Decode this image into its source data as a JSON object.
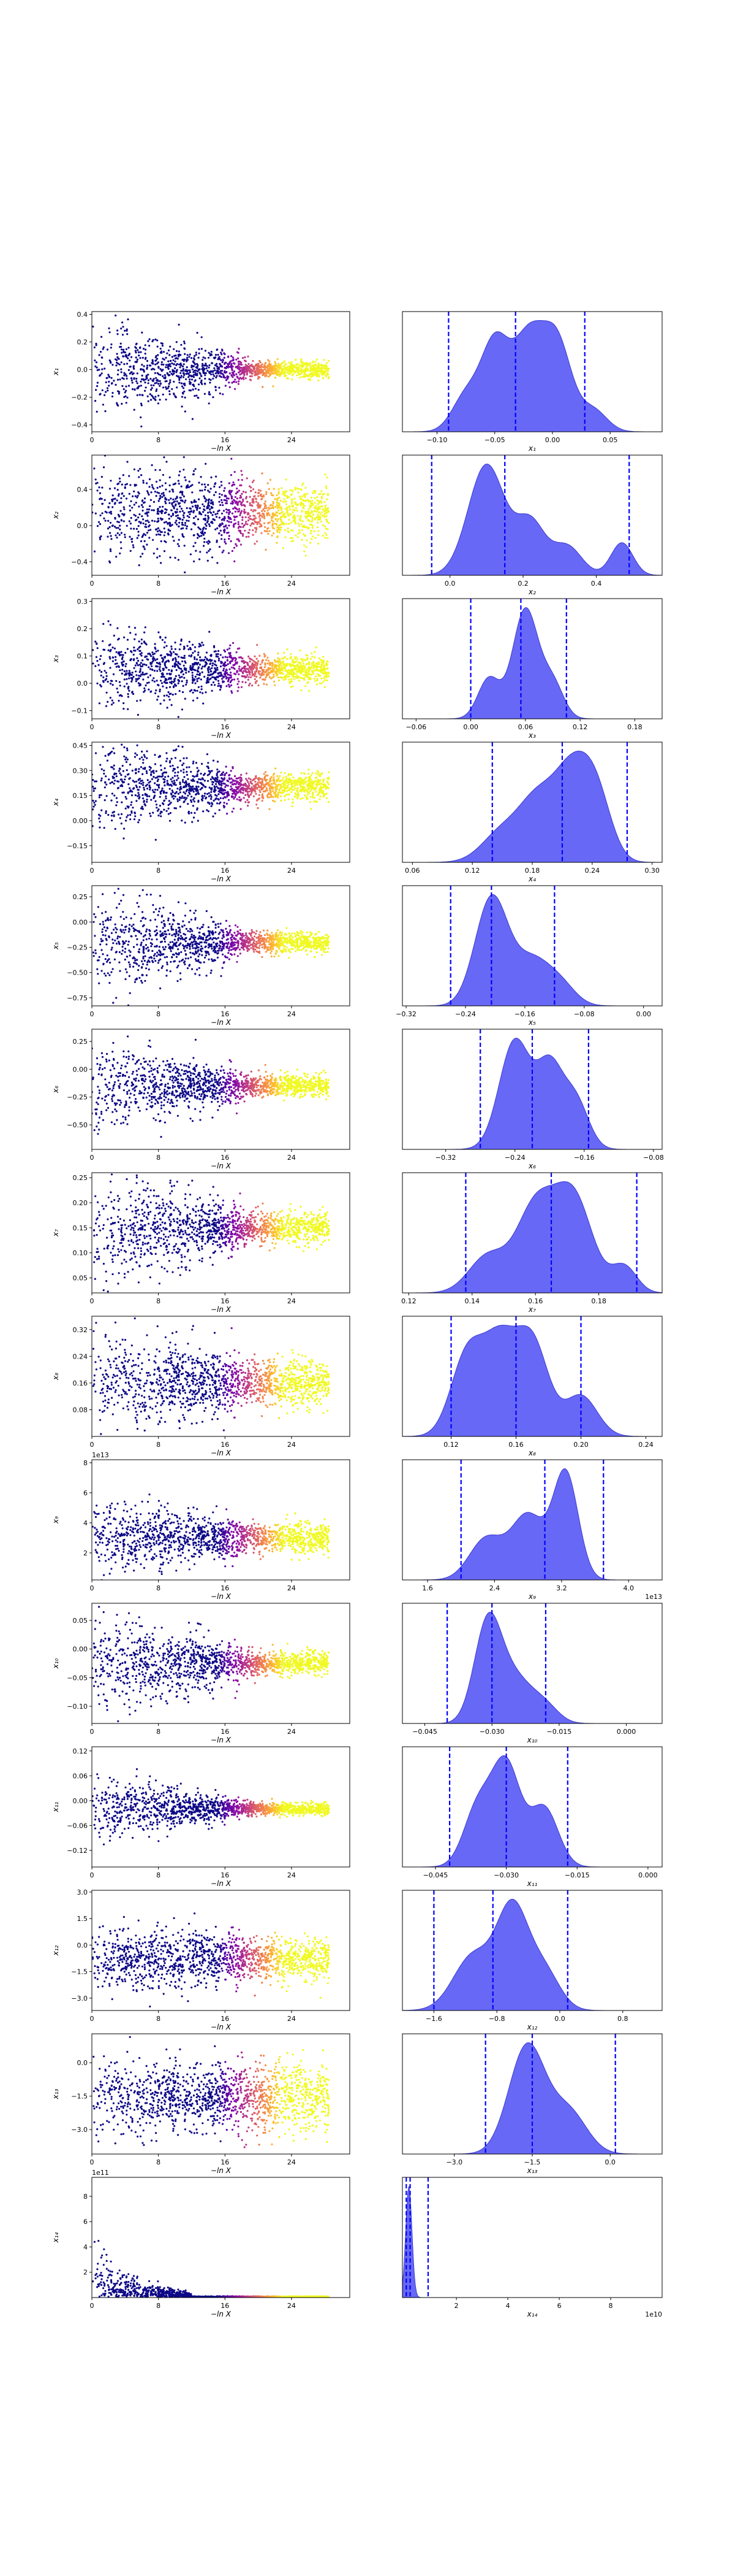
{
  "colors": {
    "scatter_low": "#0d0887",
    "scatter_mid": "#cc4778",
    "scatter_high": "#f0f921",
    "kde_fill": "#4d4df5",
    "kde_stroke": "#3a3ad0",
    "vline": "#0000ff",
    "axis": "#000000"
  },
  "chart_data": [
    {
      "type": "scatter",
      "panel": "trace",
      "row": 1,
      "xlabel": "−ln X",
      "ylabel": "x₁",
      "xlim": [
        0,
        31
      ],
      "ylim": [
        -0.45,
        0.42
      ],
      "xticks": [
        "0",
        "8",
        "16",
        "24"
      ],
      "yticks": [
        "0.4",
        "0.2",
        "0.0",
        "−0.2",
        "−0.4"
      ],
      "spread": {
        "center": 0.0,
        "start": 0.18,
        "end": 0.05,
        "converged": 0.03
      }
    },
    {
      "type": "area",
      "panel": "posterior",
      "row": 1,
      "xlabel": "x₁",
      "xlim": [
        -0.13,
        0.095
      ],
      "xticks": [
        "−0.10",
        "−0.05",
        "0.00",
        "0.05"
      ],
      "quantiles": [
        -0.09,
        -0.032,
        0.028
      ],
      "density_peaks": [
        {
          "mu": -0.075,
          "sigma": 0.012,
          "a": 0.35
        },
        {
          "mu": -0.05,
          "sigma": 0.012,
          "a": 0.85
        },
        {
          "mu": -0.02,
          "sigma": 0.014,
          "a": 0.95
        },
        {
          "mu": 0.005,
          "sigma": 0.012,
          "a": 0.8
        },
        {
          "mu": 0.035,
          "sigma": 0.012,
          "a": 0.22
        }
      ]
    },
    {
      "type": "scatter",
      "panel": "trace",
      "row": 2,
      "xlabel": "−ln X",
      "ylabel": "x₂",
      "xlim": [
        0,
        31
      ],
      "ylim": [
        -0.55,
        0.78
      ],
      "xticks": [
        "0",
        "8",
        "16",
        "24"
      ],
      "yticks": [
        "0.4",
        "0.0",
        "−0.4"
      ],
      "spread": {
        "center": 0.15,
        "start": 0.28,
        "end": 0.2,
        "converged": 0.15
      }
    },
    {
      "type": "area",
      "panel": "posterior",
      "row": 2,
      "xlabel": "x₂",
      "xlim": [
        -0.13,
        0.58
      ],
      "xticks": [
        "0.0",
        "0.2",
        "0.4"
      ],
      "quantiles": [
        -0.05,
        0.15,
        0.49
      ],
      "density_peaks": [
        {
          "mu": 0.1,
          "sigma": 0.05,
          "a": 0.95
        },
        {
          "mu": 0.22,
          "sigma": 0.04,
          "a": 0.45
        },
        {
          "mu": 0.32,
          "sigma": 0.04,
          "a": 0.25
        },
        {
          "mu": 0.47,
          "sigma": 0.03,
          "a": 0.28
        }
      ]
    },
    {
      "type": "scatter",
      "panel": "trace",
      "row": 3,
      "xlabel": "−ln X",
      "ylabel": "x₃",
      "xlim": [
        0,
        31
      ],
      "ylim": [
        -0.13,
        0.31
      ],
      "xticks": [
        "0",
        "8",
        "16",
        "24"
      ],
      "yticks": [
        "0.3",
        "0.2",
        "0.1",
        "0.0",
        "−0.1"
      ],
      "spread": {
        "center": 0.05,
        "start": 0.08,
        "end": 0.035,
        "converged": 0.025
      }
    },
    {
      "type": "area",
      "panel": "posterior",
      "row": 3,
      "xlabel": "x₃",
      "xlim": [
        -0.075,
        0.21
      ],
      "xticks": [
        "−0.06",
        "0.00",
        "0.06",
        "0.12",
        "0.18"
      ],
      "quantiles": [
        -0.0,
        0.055,
        0.105
      ],
      "density_peaks": [
        {
          "mu": 0.02,
          "sigma": 0.012,
          "a": 0.35
        },
        {
          "mu": 0.06,
          "sigma": 0.014,
          "a": 0.95
        },
        {
          "mu": 0.09,
          "sigma": 0.012,
          "a": 0.3
        }
      ]
    },
    {
      "type": "scatter",
      "panel": "trace",
      "row": 4,
      "xlabel": "−ln X",
      "ylabel": "x₄",
      "xlim": [
        0,
        31
      ],
      "ylim": [
        -0.25,
        0.47
      ],
      "xticks": [
        "0",
        "8",
        "16",
        "24"
      ],
      "yticks": [
        "0.45",
        "0.30",
        "0.15",
        "0.00",
        "−0.15"
      ],
      "spread": {
        "center": 0.2,
        "start": 0.15,
        "end": 0.05,
        "converged": 0.04
      }
    },
    {
      "type": "area",
      "panel": "posterior",
      "row": 4,
      "xlabel": "x₄",
      "xlim": [
        0.05,
        0.31
      ],
      "xticks": [
        "0.06",
        "0.12",
        "0.18",
        "0.24",
        "0.30"
      ],
      "quantiles": [
        0.14,
        0.21,
        0.275
      ],
      "density_peaks": [
        {
          "mu": 0.15,
          "sigma": 0.02,
          "a": 0.3
        },
        {
          "mu": 0.185,
          "sigma": 0.018,
          "a": 0.55
        },
        {
          "mu": 0.22,
          "sigma": 0.018,
          "a": 0.85
        },
        {
          "mu": 0.245,
          "sigma": 0.015,
          "a": 0.55
        }
      ]
    },
    {
      "type": "scatter",
      "panel": "trace",
      "row": 5,
      "xlabel": "−ln X",
      "ylabel": "x₅",
      "xlim": [
        0,
        31
      ],
      "ylim": [
        -0.83,
        0.36
      ],
      "xticks": [
        "0",
        "8",
        "16",
        "24"
      ],
      "yticks": [
        "0.25",
        "0.00",
        "−0.25",
        "−0.50",
        "−0.75"
      ],
      "spread": {
        "center": -0.2,
        "start": 0.25,
        "end": 0.07,
        "converged": 0.05
      }
    },
    {
      "type": "area",
      "panel": "posterior",
      "row": 5,
      "xlabel": "x₅",
      "xlim": [
        -0.325,
        0.025
      ],
      "xticks": [
        "−0.32",
        "−0.24",
        "−0.16",
        "−0.08",
        "0.00"
      ],
      "quantiles": [
        -0.26,
        -0.205,
        -0.12
      ],
      "density_peaks": [
        {
          "mu": -0.205,
          "sigma": 0.022,
          "a": 0.95
        },
        {
          "mu": -0.15,
          "sigma": 0.025,
          "a": 0.4
        },
        {
          "mu": -0.11,
          "sigma": 0.02,
          "a": 0.15
        }
      ]
    },
    {
      "type": "scatter",
      "panel": "trace",
      "row": 6,
      "xlabel": "−ln X",
      "ylabel": "x₆",
      "xlim": [
        0,
        31
      ],
      "ylim": [
        -0.72,
        0.36
      ],
      "xticks": [
        "0",
        "8",
        "16",
        "24"
      ],
      "yticks": [
        "0.25",
        "0.00",
        "−0.25",
        "−0.50"
      ],
      "spread": {
        "center": -0.15,
        "start": 0.2,
        "end": 0.07,
        "converged": 0.05
      }
    },
    {
      "type": "area",
      "panel": "posterior",
      "row": 6,
      "xlabel": "x₆",
      "xlim": [
        -0.37,
        -0.07
      ],
      "xticks": [
        "−0.32",
        "−0.24",
        "−0.16",
        "−0.08"
      ],
      "quantiles": [
        -0.28,
        -0.22,
        -0.155
      ],
      "density_peaks": [
        {
          "mu": -0.24,
          "sigma": 0.018,
          "a": 0.9
        },
        {
          "mu": -0.2,
          "sigma": 0.015,
          "a": 0.65
        },
        {
          "mu": -0.17,
          "sigma": 0.015,
          "a": 0.4
        }
      ]
    },
    {
      "type": "scatter",
      "panel": "trace",
      "row": 7,
      "xlabel": "−ln X",
      "ylabel": "x₇",
      "xlim": [
        0,
        31
      ],
      "ylim": [
        0.02,
        0.26
      ],
      "xticks": [
        "0",
        "8",
        "16",
        "24"
      ],
      "yticks": [
        "0.25",
        "0.20",
        "0.15",
        "0.10",
        "0.05"
      ],
      "spread": {
        "center": 0.15,
        "start": 0.06,
        "end": 0.02,
        "converged": 0.015
      }
    },
    {
      "type": "area",
      "panel": "posterior",
      "row": 7,
      "xlabel": "x₇",
      "xlim": [
        0.118,
        0.2
      ],
      "xticks": [
        "0.12",
        "0.14",
        "0.16",
        "0.18"
      ],
      "quantiles": [
        0.138,
        0.165,
        0.192
      ],
      "density_peaks": [
        {
          "mu": 0.145,
          "sigma": 0.006,
          "a": 0.35
        },
        {
          "mu": 0.16,
          "sigma": 0.006,
          "a": 0.8
        },
        {
          "mu": 0.172,
          "sigma": 0.006,
          "a": 0.9
        },
        {
          "mu": 0.188,
          "sigma": 0.004,
          "a": 0.25
        }
      ]
    },
    {
      "type": "scatter",
      "panel": "trace",
      "row": 8,
      "xlabel": "−ln X",
      "ylabel": "x₈",
      "xlim": [
        0,
        31
      ],
      "ylim": [
        0.0,
        0.36
      ],
      "xticks": [
        "0",
        "8",
        "16",
        "24"
      ],
      "yticks": [
        "0.32",
        "0.24",
        "0.16",
        "0.08"
      ],
      "spread": {
        "center": 0.16,
        "start": 0.08,
        "end": 0.04,
        "converged": 0.035
      }
    },
    {
      "type": "area",
      "panel": "posterior",
      "row": 8,
      "xlabel": "x₈",
      "xlim": [
        0.09,
        0.25
      ],
      "xticks": [
        "0.12",
        "0.16",
        "0.20",
        "0.24"
      ],
      "quantiles": [
        0.12,
        0.16,
        0.2
      ],
      "density_peaks": [
        {
          "mu": 0.13,
          "sigma": 0.01,
          "a": 0.7
        },
        {
          "mu": 0.15,
          "sigma": 0.01,
          "a": 0.75
        },
        {
          "mu": 0.17,
          "sigma": 0.01,
          "a": 0.8
        },
        {
          "mu": 0.2,
          "sigma": 0.01,
          "a": 0.35
        }
      ]
    },
    {
      "type": "scatter",
      "panel": "trace",
      "row": 9,
      "xlabel": "−ln X",
      "ylabel": "x₉",
      "xlim": [
        0,
        31
      ],
      "ylim": [
        0.2,
        8.2
      ],
      "xticks": [
        "0",
        "8",
        "16",
        "24"
      ],
      "yticks": [
        "8",
        "6",
        "4",
        "2"
      ],
      "offset_label": "1e13",
      "spread": {
        "center": 3.0,
        "start": 1.3,
        "end": 0.6,
        "converged": 0.5
      }
    },
    {
      "type": "area",
      "panel": "posterior",
      "row": 9,
      "xlabel": "x₉",
      "xlim": [
        1.3,
        4.4
      ],
      "xticks": [
        "1.6",
        "2.4",
        "3.2",
        "4.0"
      ],
      "offset_label": "1e13",
      "quantiles": [
        2.0,
        3.0,
        3.7
      ],
      "density_peaks": [
        {
          "mu": 2.3,
          "sigma": 0.2,
          "a": 0.35
        },
        {
          "mu": 2.8,
          "sigma": 0.2,
          "a": 0.55
        },
        {
          "mu": 3.25,
          "sigma": 0.15,
          "a": 0.9
        }
      ]
    },
    {
      "type": "scatter",
      "panel": "trace",
      "row": 10,
      "xlabel": "−ln X",
      "ylabel": "x₁₀",
      "xlim": [
        0,
        31
      ],
      "ylim": [
        -0.13,
        0.08
      ],
      "xticks": [
        "0",
        "8",
        "16",
        "24"
      ],
      "yticks": [
        "0.05",
        "0.00",
        "−0.05",
        "−0.10"
      ],
      "spread": {
        "center": -0.025,
        "start": 0.045,
        "end": 0.015,
        "converged": 0.01
      }
    },
    {
      "type": "area",
      "panel": "posterior",
      "row": 10,
      "xlabel": "x₁₀",
      "xlim": [
        -0.05,
        0.008
      ],
      "xticks": [
        "−0.045",
        "−0.030",
        "−0.015",
        "0.000"
      ],
      "quantiles": [
        -0.04,
        -0.03,
        -0.018
      ],
      "density_peaks": [
        {
          "mu": -0.031,
          "sigma": 0.003,
          "a": 0.95
        },
        {
          "mu": -0.025,
          "sigma": 0.004,
          "a": 0.45
        },
        {
          "mu": -0.018,
          "sigma": 0.003,
          "a": 0.15
        }
      ]
    },
    {
      "type": "scatter",
      "panel": "trace",
      "row": 11,
      "xlabel": "−ln X",
      "ylabel": "x₁₁",
      "xlim": [
        0,
        31
      ],
      "ylim": [
        -0.16,
        0.13
      ],
      "xticks": [
        "0",
        "8",
        "16",
        "24"
      ],
      "yticks": [
        "0.12",
        "0.06",
        "0.00",
        "−0.06",
        "−0.12"
      ],
      "spread": {
        "center": -0.02,
        "start": 0.04,
        "end": 0.01,
        "converged": 0.008
      }
    },
    {
      "type": "area",
      "panel": "posterior",
      "row": 11,
      "xlabel": "x₁₁",
      "xlim": [
        -0.052,
        0.003
      ],
      "xticks": [
        "−0.045",
        "−0.030",
        "−0.015",
        "0.000"
      ],
      "quantiles": [
        -0.042,
        -0.03,
        -0.017
      ],
      "density_peaks": [
        {
          "mu": -0.036,
          "sigma": 0.003,
          "a": 0.5
        },
        {
          "mu": -0.03,
          "sigma": 0.003,
          "a": 0.85
        },
        {
          "mu": -0.022,
          "sigma": 0.003,
          "a": 0.5
        }
      ]
    },
    {
      "type": "scatter",
      "panel": "trace",
      "row": 12,
      "xlabel": "−ln X",
      "ylabel": "x₁₂",
      "xlim": [
        0,
        31
      ],
      "ylim": [
        -3.7,
        3.1
      ],
      "xticks": [
        "0",
        "8",
        "16",
        "24"
      ],
      "yticks": [
        "3.0",
        "1.5",
        "0.0",
        "−1.5",
        "−3.0"
      ],
      "spread": {
        "center": -0.8,
        "start": 0.9,
        "end": 0.8,
        "converged": 0.6
      }
    },
    {
      "type": "area",
      "panel": "posterior",
      "row": 12,
      "xlabel": "x₁₂",
      "xlim": [
        -2.0,
        1.3
      ],
      "xticks": [
        "−1.6",
        "−0.8",
        "0.0",
        "0.8"
      ],
      "quantiles": [
        -1.6,
        -0.85,
        0.1
      ],
      "density_peaks": [
        {
          "mu": -1.1,
          "sigma": 0.25,
          "a": 0.5
        },
        {
          "mu": -0.6,
          "sigma": 0.2,
          "a": 0.9
        },
        {
          "mu": -0.2,
          "sigma": 0.2,
          "a": 0.35
        }
      ]
    },
    {
      "type": "scatter",
      "panel": "trace",
      "row": 13,
      "xlabel": "−ln X",
      "ylabel": "x₁₃",
      "xlim": [
        0,
        31
      ],
      "ylim": [
        -4.1,
        1.3
      ],
      "xticks": [
        "0",
        "8",
        "16",
        "24"
      ],
      "yticks": [
        "0.0",
        "−1.5",
        "−3.0"
      ],
      "spread": {
        "center": -1.5,
        "start": 0.9,
        "end": 0.7,
        "converged": 0.8
      }
    },
    {
      "type": "area",
      "panel": "posterior",
      "row": 13,
      "xlabel": "x₁₃",
      "xlim": [
        -4.0,
        1.0
      ],
      "xticks": [
        "−3.0",
        "−1.5",
        "0.0"
      ],
      "quantiles": [
        -2.4,
        -1.5,
        0.1
      ],
      "density_peaks": [
        {
          "mu": -1.6,
          "sigma": 0.35,
          "a": 0.9
        },
        {
          "mu": -0.8,
          "sigma": 0.35,
          "a": 0.35
        }
      ]
    },
    {
      "type": "scatter",
      "panel": "trace",
      "row": 14,
      "xlabel": "−ln X",
      "ylabel": "x₁₄",
      "xlim": [
        0,
        31
      ],
      "ylim": [
        0.0,
        9.5
      ],
      "xticks": [
        "0",
        "8",
        "16",
        "24"
      ],
      "yticks": [
        "8",
        "6",
        "4",
        "2"
      ],
      "offset_label": "1e11",
      "spread": {
        "center": 0.2,
        "start": 2.0,
        "end": 0.05,
        "converged": 0.02
      }
    },
    {
      "type": "area",
      "panel": "posterior",
      "row": 14,
      "xlabel": "x₁₄",
      "xlim": [
        -0.1,
        10.0
      ],
      "xticks": [
        "2",
        "4",
        "6",
        "8"
      ],
      "offset_label": "1e10",
      "quantiles": [
        0.05,
        0.2,
        0.9
      ],
      "density_peaks": [
        {
          "mu": 0.15,
          "sigma": 0.12,
          "a": 1.0
        }
      ]
    }
  ]
}
